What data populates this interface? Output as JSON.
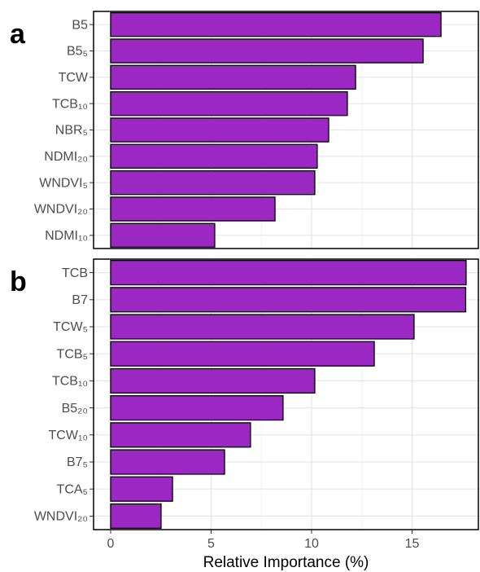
{
  "chart_data": [
    {
      "type": "bar",
      "orientation": "horizontal",
      "panel_label": "a",
      "categories": [
        "B5",
        "B5₅",
        "TCW",
        "TCB₁₀",
        "NBR₅",
        "NDMI₂₀",
        "WNDVI₅",
        "WNDVI₂₀",
        "NDMI₁₀"
      ],
      "values": [
        16.44,
        15.55,
        12.19,
        11.78,
        10.85,
        10.28,
        10.16,
        8.18,
        5.18
      ],
      "color": "#9b28c2",
      "xlim": [
        -0.85,
        18.3
      ],
      "xticks": [
        0,
        5,
        10,
        15
      ],
      "grid": true
    },
    {
      "type": "bar",
      "orientation": "horizontal",
      "panel_label": "b",
      "categories": [
        "TCB",
        "B7",
        "TCW₅",
        "TCB₅",
        "TCB₁₀",
        "B5₂₀",
        "TCW₁₀",
        "B7₅",
        "TCA₅",
        "WNDVI₂₀"
      ],
      "values": [
        17.69,
        17.67,
        15.1,
        13.12,
        10.16,
        8.58,
        6.96,
        5.67,
        3.08,
        2.51
      ],
      "color": "#9b28c2",
      "xlim": [
        -0.85,
        18.3
      ],
      "xticks": [
        0,
        5,
        10,
        15
      ],
      "grid": true,
      "xlabel": "Relative Importance (%)"
    }
  ]
}
